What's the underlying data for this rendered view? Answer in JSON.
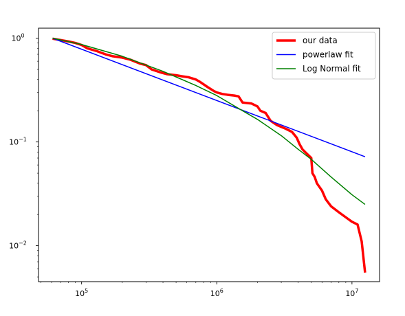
{
  "chart_data": {
    "type": "line",
    "xscale": "log",
    "yscale": "log",
    "xlim": [
      48000,
      16000000
    ],
    "ylim": [
      0.0045,
      1.25
    ],
    "grid": false,
    "legend_position": "top-right",
    "xticks": [
      {
        "value": 100000,
        "base": "10",
        "exp": "5"
      },
      {
        "value": 1000000,
        "base": "10",
        "exp": "6"
      },
      {
        "value": 10000000,
        "base": "10",
        "exp": "7"
      }
    ],
    "yticks": [
      {
        "value": 0.01,
        "base": "10",
        "exp": "−2"
      },
      {
        "value": 0.1,
        "base": "10",
        "exp": "−1"
      },
      {
        "value": 1,
        "base": "10",
        "exp": "0"
      }
    ],
    "series": [
      {
        "name": "our data",
        "color": "#ff0000",
        "width": 3.5,
        "x": [
          61000,
          70000,
          80000,
          90000,
          100000,
          110000,
          130000,
          150000,
          170000,
          200000,
          230000,
          270000,
          300000,
          330000,
          380000,
          430000,
          500000,
          550000,
          620000,
          700000,
          750000,
          850000,
          950000,
          1000000,
          1100000,
          1200000,
          1350000,
          1450000,
          1550000,
          1800000,
          2000000,
          2100000,
          2300000,
          2500000,
          2800000,
          3200000,
          3600000,
          3900000,
          4100000,
          4300000,
          4500000,
          5000000,
          5100000,
          5300000,
          5500000,
          6000000,
          6400000,
          7000000,
          8000000,
          10000000,
          11000000,
          11800000,
          12500000
        ],
        "y": [
          0.99,
          0.96,
          0.93,
          0.9,
          0.86,
          0.8,
          0.75,
          0.7,
          0.67,
          0.65,
          0.62,
          0.57,
          0.55,
          0.5,
          0.47,
          0.45,
          0.44,
          0.43,
          0.42,
          0.4,
          0.38,
          0.34,
          0.31,
          0.3,
          0.29,
          0.285,
          0.28,
          0.275,
          0.24,
          0.235,
          0.22,
          0.2,
          0.19,
          0.16,
          0.145,
          0.135,
          0.125,
          0.11,
          0.095,
          0.085,
          0.08,
          0.07,
          0.05,
          0.046,
          0.04,
          0.034,
          0.028,
          0.024,
          0.021,
          0.017,
          0.016,
          0.011,
          0.0055
        ]
      },
      {
        "name": "powerlaw fit",
        "color": "#0000ff",
        "width": 1.5,
        "x": [
          61000,
          12500000
        ],
        "y": [
          1.0,
          0.072
        ]
      },
      {
        "name": "Log Normal fit",
        "color": "#008000",
        "width": 1.5,
        "x": [
          61000,
          100000,
          200000,
          400000,
          700000,
          1000000,
          1500000,
          2000000,
          3000000,
          4000000,
          5000000,
          7000000,
          10000000,
          12500000
        ],
        "y": [
          1.0,
          0.87,
          0.67,
          0.48,
          0.35,
          0.28,
          0.205,
          0.165,
          0.115,
          0.085,
          0.068,
          0.046,
          0.031,
          0.025
        ]
      }
    ]
  }
}
